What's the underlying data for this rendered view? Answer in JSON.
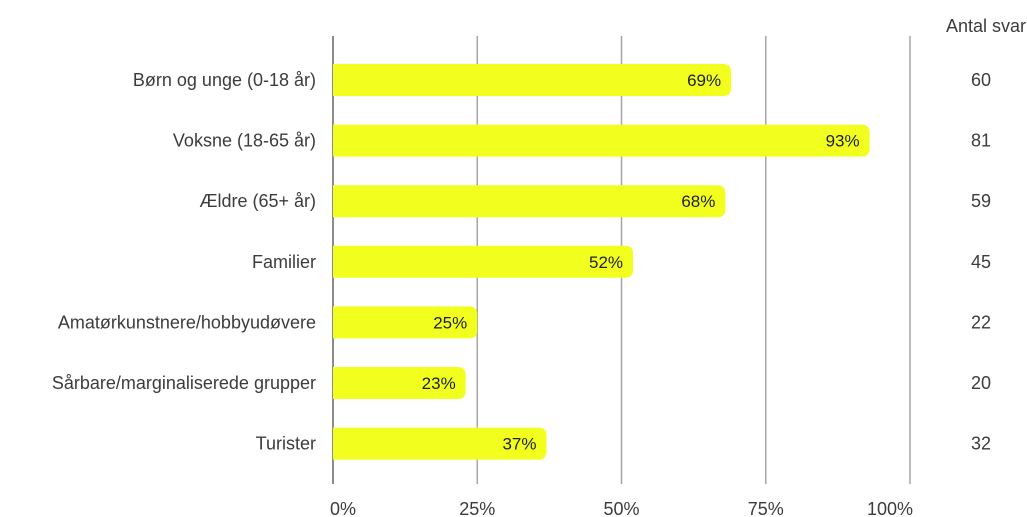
{
  "chart_data": {
    "type": "bar",
    "orientation": "horizontal",
    "categories": [
      "Børn og unge (0-18 år)",
      "Voksne (18-65 år)",
      "Ældre (65+ år)",
      "Familier",
      "Amatørkunstnere/hobbyudøvere",
      "Sårbare/marginaliserede grupper",
      "Turister"
    ],
    "values": [
      69,
      93,
      68,
      52,
      25,
      23,
      37
    ],
    "value_labels": [
      "69%",
      "93%",
      "68%",
      "52%",
      "25%",
      "23%",
      "37%"
    ],
    "counts_header": "Antal svar",
    "counts": [
      "60",
      "81",
      "59",
      "45",
      "22",
      "20",
      "32"
    ],
    "xlim": [
      0,
      100
    ],
    "xticks": [
      0,
      25,
      50,
      75,
      100
    ],
    "xtick_labels": [
      "0%",
      "25%",
      "50%",
      "75%",
      "100%"
    ],
    "bar_color": "#f2ff1e",
    "grid": true
  }
}
